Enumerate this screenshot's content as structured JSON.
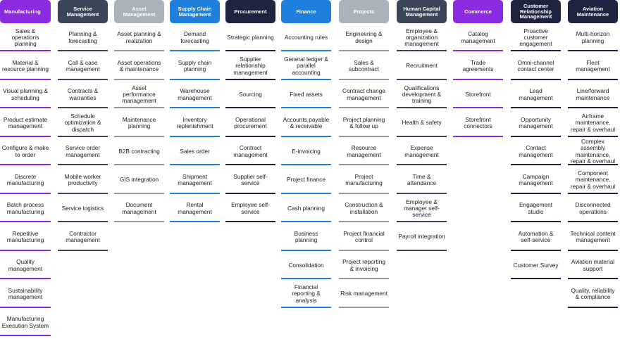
{
  "colors": {
    "purple": "#8a2be2",
    "slate": "#3a4658",
    "gray": "#aab2bc",
    "blue": "#1e7fdc",
    "navy": "#1e2340",
    "text_light": "#ffffff",
    "text_dark": "#1a1a1a"
  },
  "columns": [
    {
      "header": "Manufacturing",
      "style": "purple",
      "items": [
        "Sales & operations planning",
        "Material & resource planning",
        "Visual planning & scheduling",
        "Product estimate management",
        "Configure & make to order",
        "Discrete manufacturing",
        "Batch process manufacturing",
        "Repetitive manufacturing",
        "Quality management",
        "Sustainability management",
        "Manufacturing Execution System"
      ]
    },
    {
      "header": "Service Management",
      "style": "slate",
      "items": [
        "Planning & forecasting",
        "Call & case management",
        "Contracts & warranties",
        "Schedule optimization & dispatch",
        "Service order management",
        "Mobile worker productivity",
        "Service logistics",
        "Contractor management"
      ]
    },
    {
      "header": "Asset Management",
      "style": "gray",
      "items": [
        "Asset planning & realization",
        "Asset operations & maintenance",
        "Asset performance management",
        "Maintenance planning",
        "B2B contracting",
        "GIS integration",
        "Document management"
      ]
    },
    {
      "header": "Supply Chain Management",
      "style": "blue",
      "items": [
        "Demand forecasting",
        "Supply chain planning",
        "Warehouse management",
        "Inventory replenishment",
        "Sales order",
        "Shipment management",
        "Rental management"
      ]
    },
    {
      "header": "Procurement",
      "style": "navy",
      "items": [
        "Strategic planning",
        "Supplier relationship management",
        "Sourcing",
        "Operational procurement",
        "Contract management",
        "Supplier self-service",
        "Employee self-service"
      ]
    },
    {
      "header": "Finance",
      "style": "blue",
      "items": [
        "Accounting rules",
        "General ledger & parallel accounting",
        "Fixed assets",
        "Accounts payable & receivable",
        "E-invoicing",
        "Project finance",
        "Cash planning",
        "Business planning",
        "Consolidation",
        "Financial reporting & analysis"
      ]
    },
    {
      "header": "Projects",
      "style": "gray",
      "items": [
        "Engineering & design",
        "Sales & subcontract",
        "Contract change management",
        "Project planning & follow up",
        "Resource management",
        "Project manufacturing",
        "Construction & installation",
        "Project financial control",
        "Project reporting & invoicing",
        "Risk management"
      ]
    },
    {
      "header": "Human Capital Management",
      "style": "slate",
      "items": [
        "Employee & organization management",
        "Recruitment",
        "Qualifications development & training",
        "Health & safety",
        "Expense management",
        "Time & attendance",
        "Employee & manager self-service",
        "Payroll integration"
      ]
    },
    {
      "header": "Commerce",
      "style": "purple",
      "items": [
        "Catalog management",
        "Trade agreements",
        "Storefront",
        "Storefront connectors"
      ]
    },
    {
      "header": "Customer Relationship Management",
      "style": "navy",
      "items": [
        "Proactive customer engagement",
        "Omni-channel contact center",
        "Lead management",
        "Opportunity management",
        "Contact management",
        "Campaign management",
        "Engagement studio",
        "Automation & self-service",
        "Customer Survey"
      ]
    },
    {
      "header": "Aviation Maintenance",
      "style": "navy",
      "items": [
        "Multi-horizon planning",
        "Fleet management",
        "Line/forward maintenance",
        "Airframe maintenance, repair & overhaul",
        "Complex assembly maintenance, repair & overhaul",
        "Component maintenance, repair & overhaul",
        "Disconnected operations",
        "Technical content management",
        "Aviation material support",
        "Quality, reliability & compliance"
      ]
    }
  ]
}
